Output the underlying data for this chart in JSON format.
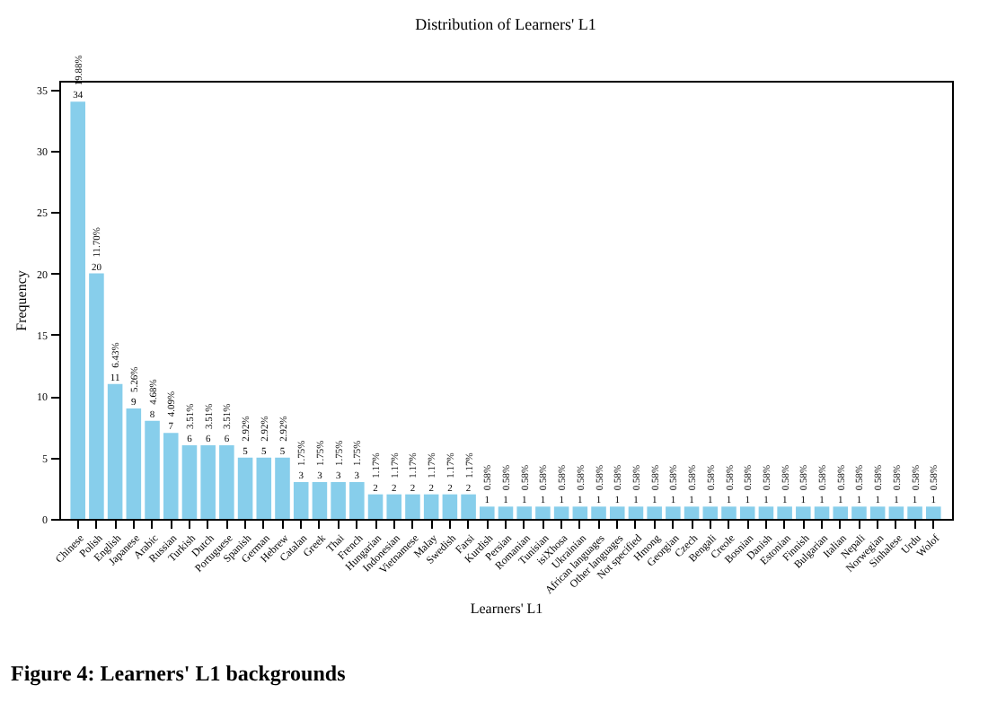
{
  "chart_data": {
    "type": "bar",
    "title": "Distribution of Learners' L1",
    "xlabel": "Learners' L1",
    "ylabel": "Frequency",
    "annotations": [
      "Figure 4:    Learners' L1 backgrounds"
    ],
    "categories": [
      "Chinese",
      "Polish",
      "English",
      "Japanese",
      "Arabic",
      "Russian",
      "Turkish",
      "Dutch",
      "Portuguese",
      "Spanish",
      "German",
      "Hebrew",
      "Catalan",
      "Greek",
      "Thai",
      "French",
      "Hungarian",
      "Indonesian",
      "Vietnamese",
      "Malay",
      "Swedish",
      "Farsi",
      "Kurdish",
      "Persian",
      "Romanian",
      "Tunisian",
      "isiXhosa",
      "Ukrainian",
      "African languages",
      "Other languages",
      "Not specified",
      "Hmong",
      "Georgian",
      "Czech",
      "Bengali",
      "Creole",
      "Bosnian",
      "Danish",
      "Estonian",
      "Finnish",
      "Bulgarian",
      "Italian",
      "Nepali",
      "Norwegian",
      "Sinhalese",
      "Urdu",
      "Wolof"
    ],
    "values": [
      34,
      20,
      11,
      9,
      8,
      7,
      6,
      6,
      6,
      5,
      5,
      5,
      3,
      3,
      3,
      3,
      2,
      2,
      2,
      2,
      2,
      2,
      1,
      1,
      1,
      1,
      1,
      1,
      1,
      1,
      1,
      1,
      1,
      1,
      1,
      1,
      1,
      1,
      1,
      1,
      1,
      1,
      1,
      1,
      1,
      1,
      1
    ],
    "value_labels": [
      "34\n19.88%",
      "20\n11.70%",
      "11\n6.43%",
      "9\n5.26%",
      "8\n4.68%",
      "7\n4.09%",
      "6\n3.51%",
      "6\n3.51%",
      "6\n3.51%",
      "5\n2.92%",
      "5\n2.92%",
      "5\n2.92%",
      "3\n1.75%",
      "3\n1.75%",
      "3\n1.75%",
      "3\n1.75%",
      "2\n1.17%",
      "2\n1.17%",
      "2\n1.17%",
      "2\n1.17%",
      "2\n1.17%",
      "2\n1.17%",
      "1\n0.58%",
      "1\n0.58%",
      "1\n0.58%",
      "1\n0.58%",
      "1\n0.58%",
      "1\n0.58%",
      "1\n0.58%",
      "1\n0.58%",
      "1\n0.58%",
      "1\n0.58%",
      "1\n0.58%",
      "1\n0.58%",
      "1\n0.58%",
      "1\n0.58%",
      "1\n0.58%",
      "1\n0.58%",
      "1\n0.58%",
      "1\n0.58%",
      "1\n0.58%",
      "1\n0.58%",
      "1\n0.58%",
      "1\n0.58%",
      "1\n0.58%",
      "1\n0.58%",
      "1\n0.58%"
    ],
    "color": "#87ceeb",
    "ylim": [
      0,
      35.7
    ],
    "yticks": [
      0,
      5,
      10,
      15,
      20,
      25,
      30,
      35
    ],
    "grid": false
  }
}
